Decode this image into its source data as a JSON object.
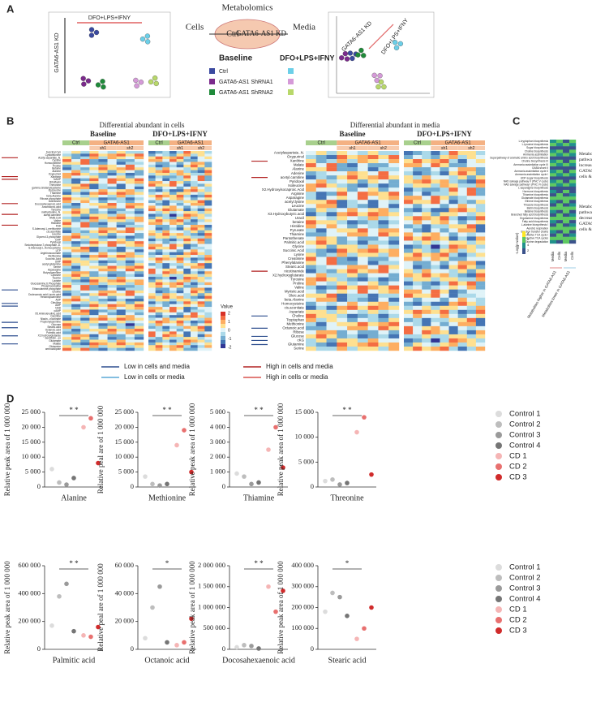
{
  "panel_a": {
    "label": "A",
    "title": "Metabolomics",
    "cells": "Cells",
    "media": "Media",
    "ctrl": "Ctrl",
    "kd": "GATA6-AS1 KD",
    "baseline": "Baseline",
    "treatment": "DFO+LPS+IFNY",
    "legend": [
      {
        "name": "Ctrl",
        "color": "#3b4aa0",
        "color2": "#6ccfe8"
      },
      {
        "name": "GATA6-AS1 ShRNA1",
        "color": "#7b2a8c",
        "color2": "#d59ad8"
      },
      {
        "name": "GATA6-AS1 ShRNA2",
        "color": "#1f8a3a",
        "color2": "#b8d86a"
      }
    ],
    "pca_left_kd": "GATA6-AS1 KD",
    "pca_left_treat": "DFO+LPS+IFNY",
    "pca_right_kd": "GATA6-AS1 KD",
    "pca_right_treat": "DFO+LPS+IFNY"
  },
  "panel_b": {
    "label": "B",
    "cells_title": "Differential abundant in cells",
    "media_title": "Differential abundant in media",
    "baseline": "Baseline",
    "treatment": "DFO+LPS+IFNY",
    "ctrl": "Ctrl",
    "kd": "GATA6-AS1",
    "sh1": "sh1",
    "sh2": "sh2",
    "value_title": "Value",
    "value_ticks": [
      2,
      1,
      0,
      -1,
      -2
    ],
    "cells_rows": [
      "Succinyl.Cys",
      "Cystathionine",
      "Acetyl.aspartate..N.",
      "Cystine",
      "Homocysteine",
      "Proline",
      "Betaine",
      "Alanine",
      "Oxypurinol",
      "Xanthine",
      "NADP",
      "Riboflavin",
      "Threonine",
      "gamma.Glutamylcysteine",
      "IsoLeucine",
      "Thiamine",
      "beta.Alanine",
      "Ribose.phosphate",
      "Adenosine",
      "Docosahexaenoic.acid",
      "Arachidonic.acid",
      "Tyrosine",
      "methylGuano..N.",
      "acetyl.carnitine",
      "HMB.CoA",
      "Valine",
      "Histidine",
      "FAD",
      "S.Adenosyl.L.methionine",
      "cis.aconitate",
      "Leucine",
      "Glycerol.3.phosphate",
      "CMP",
      "Pyridoxal",
      "Sedoheptulose.7.phosphate..D.",
      "S.Adenosyl.L.Homocysteine",
      "UTP",
      "Argininosuccinate",
      "Methionine",
      "Succinic.Acid",
      "UMP",
      "acetyl.glutamine",
      "Serine",
      "Asparagine",
      "Butyrylcarnitine",
      "Cytosine",
      "Taurine",
      "Lactate",
      "Glucosamine.6.Phosphate",
      "Phosphocreatine",
      "Ethanolamine.phosphate",
      "Choline",
      "Dodecanoic.acid.Lauric.acid",
      "Hexanoylcarnitine",
      "ADP",
      "Citrulline",
      "AMP",
      "NAD",
      "cAMP",
      "X5.Aminolevulinic.acid",
      "Carnitine",
      "Niacin...nicotinate",
      "Propionylcarnitine",
      "Glucose",
      "Stearic.acid",
      "Octanoic.acid",
      "Palmitic.acid",
      "X2.hydroxyglutarate",
      "Serotonin...ex",
      "Glutamate",
      "Malate",
      "Glutamine",
      "aminoadipate"
    ],
    "media_rows": [
      "Acetylaspartate..N.",
      "Oxypurinol",
      "Xanthine",
      "Malate",
      "Alanine",
      "Adenine",
      "acetyl.carnitine",
      "Pyridoxal",
      "Isoleucine",
      "X2.Hydroxyisocaproic.Acid",
      "Arginine",
      "Asparagine",
      "acetyl.lysine",
      "Leucine",
      "Glutamate",
      "X3.Hydroxybutyric.acid",
      "Uracil",
      "betaine",
      "Histidine",
      "Pyruvate",
      "Thiamine",
      "Pantothenate",
      "Palmitic.acid",
      "Glycine",
      "Succinic.Acid",
      "Lysine",
      "Creatinine",
      "Phenylalanine",
      "Stearic.acid",
      "nicotinamide",
      "X2.hydroxyglutarate",
      "Tyrosine",
      "Proline",
      "Valine",
      "Myristic.acid",
      "Oleic.acid",
      "beta.Alanine",
      "Homocysteine",
      "cis.aconitate",
      "Aspartate",
      "Choline",
      "Tryptophan",
      "Methionine",
      "Octanoic.acid",
      "Ribose",
      "Glucose",
      "cKG",
      "Glutamine",
      "Serine"
    ],
    "arrow_legend": [
      {
        "text": "Low in cells and media",
        "color": "#2f4f8f"
      },
      {
        "text": "Low in cells or media",
        "color": "#5aa9d6"
      },
      {
        "text": "High in cells and media",
        "color": "#b22222"
      },
      {
        "text": "High in cells or media",
        "color": "#d9534f"
      }
    ]
  },
  "panel_c": {
    "label": "C",
    "rows": [
      "L-tryptophan biosynthesis",
      "L-tyrosine biosynthesis",
      "Sugar biosynthesis",
      "Choline biosynthesis",
      "Ammonia assimilation",
      "Superpathway of aromatic amino acid biosynthesis",
      "Choline biosynthesis III",
      "Ammonia assimilation cycle III",
      "GABA shunt II",
      "Ammonia assimilation cycle II",
      "Ammonia assimilation cycle I",
      "UDP-sugar biosynthesis",
      "NAD salvage pathway V (PNC V cycle)",
      "NAD salvage pathway I (PNC VI cycle)",
      "L-asparagine biosynthesis",
      "Hormone biosynthesis",
      "Thiamine biosynthesis",
      "Glutamate biosynthesis",
      "Ethene biosynthesis",
      "Thiazole biosynthesis",
      "Biotin biosynthesis",
      "Betaine biosynthesis",
      "Branched fatty acid biosynthesis",
      "Ergotamine biosynthesis",
      "Fatty acid biosynthesis",
      "L-alanine biosynthesis I",
      "Aerobic respiration",
      "Electron transfer chains",
      "Reductive TCA cycle I",
      "Reductive TCA cycles",
      "Taurine degradation"
    ],
    "note_up": "Metabolic pathways increased in GATA6-AS1 KD cells & media",
    "note_down": "Metabolic pathways decreased in GATA6-AS1 KD cells & media",
    "scale_title": "-Log(p-value)",
    "scale_ticks": [
      8,
      6,
      4,
      2
    ],
    "columns": [
      "Media",
      "Cells",
      "Media",
      "Cells"
    ],
    "group_higher": "Metabolites higher in GATA6-AS1",
    "group_lower": "Metabolites lower in GATA6-AS1"
  },
  "panel_d": {
    "label": "D",
    "legend": [
      {
        "name": "Control 1",
        "color": "#dcdcdc"
      },
      {
        "name": "Control 2",
        "color": "#bdbdbd"
      },
      {
        "name": "Control 3",
        "color": "#9a9a9a"
      },
      {
        "name": "Control 4",
        "color": "#757575"
      },
      {
        "name": "CD 1",
        "color": "#f5b5b5"
      },
      {
        "name": "CD 2",
        "color": "#e8706f"
      },
      {
        "name": "CD 3",
        "color": "#d02b2b"
      }
    ]
  },
  "chart_data": [
    {
      "type": "strip",
      "x_label": "Alanine",
      "y_label": "Relative peak area of 1 000 000",
      "significance": "* *",
      "values": [
        6000,
        1500,
        800,
        3000,
        20000,
        23000,
        8000
      ],
      "ylim": [
        0,
        25000
      ],
      "yticks": [
        0,
        {
          "value": 5000,
          "label": "5 000"
        },
        {
          "value": 10000,
          "label": "10 000"
        },
        {
          "value": 15000,
          "label": "15 000"
        },
        {
          "value": 20000,
          "label": "20 000"
        },
        {
          "value": 25000,
          "label": "25 000"
        }
      ]
    },
    {
      "type": "strip",
      "x_label": "Methionine",
      "y_label": "Relative peal are of 1 000 000",
      "significance": "* *",
      "values": [
        3500,
        1000,
        500,
        1000,
        14000,
        19000,
        5000
      ],
      "ylim": [
        0,
        25000
      ],
      "yticks": [
        0,
        {
          "value": 5000,
          "label": "5 000"
        },
        {
          "value": 10000,
          "label": "10 000"
        },
        {
          "value": 15000,
          "label": "15 000"
        },
        {
          "value": 20000,
          "label": "20 000"
        },
        {
          "value": 25000,
          "label": "25 000"
        }
      ]
    },
    {
      "type": "strip",
      "x_label": "Thiamine",
      "y_label": "Relative peak area of 1 000 000",
      "significance": "* *",
      "values": [
        900,
        700,
        200,
        300,
        2500,
        4000,
        1300
      ],
      "ylim": [
        0,
        5000
      ],
      "yticks": [
        0,
        {
          "value": 1000,
          "label": "1 000"
        },
        {
          "value": 2000,
          "label": "2 000"
        },
        {
          "value": 3000,
          "label": "3 000"
        },
        {
          "value": 4000,
          "label": "4 000"
        },
        {
          "value": 5000,
          "label": "5 000"
        }
      ]
    },
    {
      "type": "strip",
      "x_label": "Threonine",
      "y_label": "Relative peak area of 1 000 000",
      "significance": "* *",
      "values": [
        1200,
        1500,
        500,
        800,
        11000,
        14000,
        2500
      ],
      "ylim": [
        0,
        15000
      ],
      "yticks": [
        0,
        {
          "value": 5000,
          "label": "5 000"
        },
        {
          "value": 10000,
          "label": "10 000"
        },
        {
          "value": 15000,
          "label": "15 000"
        }
      ]
    },
    {
      "type": "strip",
      "x_label": "Palmitic acid",
      "y_label": "Relative peak area of 1 000 000",
      "significance": "* *",
      "values": [
        170000,
        380000,
        470000,
        130000,
        100000,
        90000,
        160000
      ],
      "ylim": [
        0,
        600000
      ],
      "yticks": [
        0,
        {
          "value": 200000,
          "label": "200 000"
        },
        {
          "value": 400000,
          "label": "400 000"
        },
        {
          "value": 600000,
          "label": "600 000"
        }
      ]
    },
    {
      "type": "strip",
      "x_label": "Octanoic acid",
      "y_label": "Relative peal are of 1 000 000",
      "significance": "*",
      "values": [
        8000,
        30000,
        45000,
        5000,
        3000,
        5000,
        22000
      ],
      "ylim": [
        0,
        60000
      ],
      "yticks": [
        0,
        {
          "value": 20000,
          "label": "20 000"
        },
        {
          "value": 40000,
          "label": "40 000"
        },
        {
          "value": 60000,
          "label": "60 000"
        }
      ]
    },
    {
      "type": "strip",
      "x_label": "Docosahexaenoic acid",
      "y_label": "Relative peak area of 1 000 000",
      "significance": "* *",
      "values": [
        50000,
        100000,
        80000,
        20000,
        1500000,
        900000,
        1400000
      ],
      "ylim": [
        0,
        2000000
      ],
      "yticks": [
        0,
        {
          "value": 500000,
          "label": "500 000"
        },
        {
          "value": 1000000,
          "label": "1 000 000"
        },
        {
          "value": 1500000,
          "label": "1 500 000"
        },
        {
          "value": 2000000,
          "label": "2 000 000"
        }
      ]
    },
    {
      "type": "strip",
      "x_label": "Stearic acid",
      "y_label": "Relative peak area of 1 000 000",
      "significance": "*",
      "values": [
        180000,
        270000,
        250000,
        160000,
        50000,
        100000,
        200000
      ],
      "ylim": [
        0,
        400000
      ],
      "yticks": [
        0,
        {
          "value": 100000,
          "label": "100 000"
        },
        {
          "value": 200000,
          "label": "200 000"
        },
        {
          "value": 300000,
          "label": "300 000"
        },
        {
          "value": 400000,
          "label": "400 000"
        }
      ]
    }
  ]
}
